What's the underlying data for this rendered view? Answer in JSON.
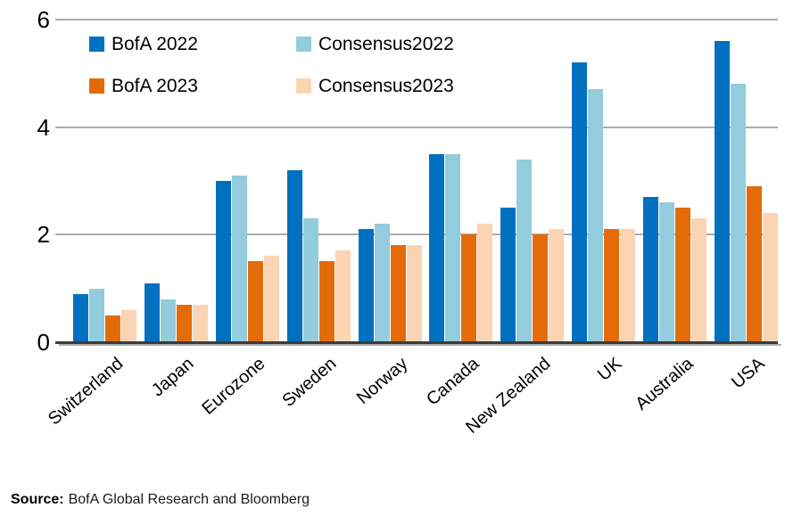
{
  "chart_data": {
    "type": "bar",
    "title": "",
    "categories": [
      "Switzerland",
      "Japan",
      "Eurozone",
      "Sweden",
      "Norway",
      "Canada",
      "New Zealand",
      "UK",
      "Australia",
      "USA"
    ],
    "series": [
      {
        "name": "BofA 2022",
        "color": "#0070C0",
        "values": [
          0.9,
          1.1,
          3.0,
          3.2,
          2.1,
          3.5,
          2.5,
          5.2,
          2.7,
          5.6
        ]
      },
      {
        "name": "Consensus2022",
        "color": "#93CDDD",
        "values": [
          1.0,
          0.8,
          3.1,
          2.3,
          2.2,
          3.5,
          3.4,
          4.7,
          2.6,
          4.8
        ]
      },
      {
        "name": "BofA 2023",
        "color": "#E36C09",
        "values": [
          0.5,
          0.7,
          1.5,
          1.5,
          1.8,
          2.0,
          2.0,
          2.1,
          2.5,
          2.9
        ]
      },
      {
        "name": "Consensus2023",
        "color": "#FBD4B4",
        "values": [
          0.6,
          0.7,
          1.6,
          1.7,
          1.8,
          2.2,
          2.1,
          2.1,
          2.3,
          2.4
        ]
      }
    ],
    "ylim": [
      0,
      6
    ],
    "yticks": [
      0,
      2,
      4,
      6
    ],
    "grid": true,
    "legend_position": "top-left inside plot, 2x2 grid",
    "colors": {
      "gridline": "#ABABAB",
      "axis_line": "#3A3A3A",
      "text": "#000000"
    }
  },
  "footer": {
    "source_label": "Source:",
    "source_text": "BofA Global Research and Bloomberg"
  }
}
